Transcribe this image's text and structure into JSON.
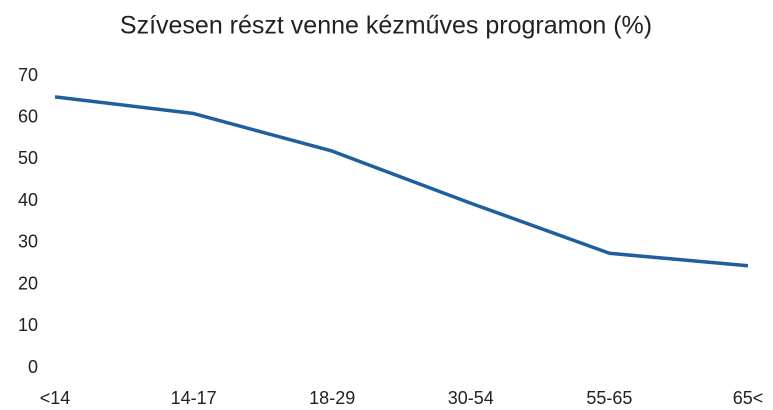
{
  "chart_data": {
    "type": "line",
    "title": "Szívesen részt venne kézműves programon (%)",
    "categories": [
      "<14",
      "14-17",
      "18-29",
      "30-54",
      "55-65",
      "65<"
    ],
    "values": [
      65,
      61,
      52,
      39.5,
      27.5,
      24.5
    ],
    "color": "#1f5f9e",
    "ylim": [
      0,
      70
    ],
    "yticks": [
      0,
      10,
      20,
      30,
      40,
      50,
      60,
      70
    ],
    "grid": false
  }
}
